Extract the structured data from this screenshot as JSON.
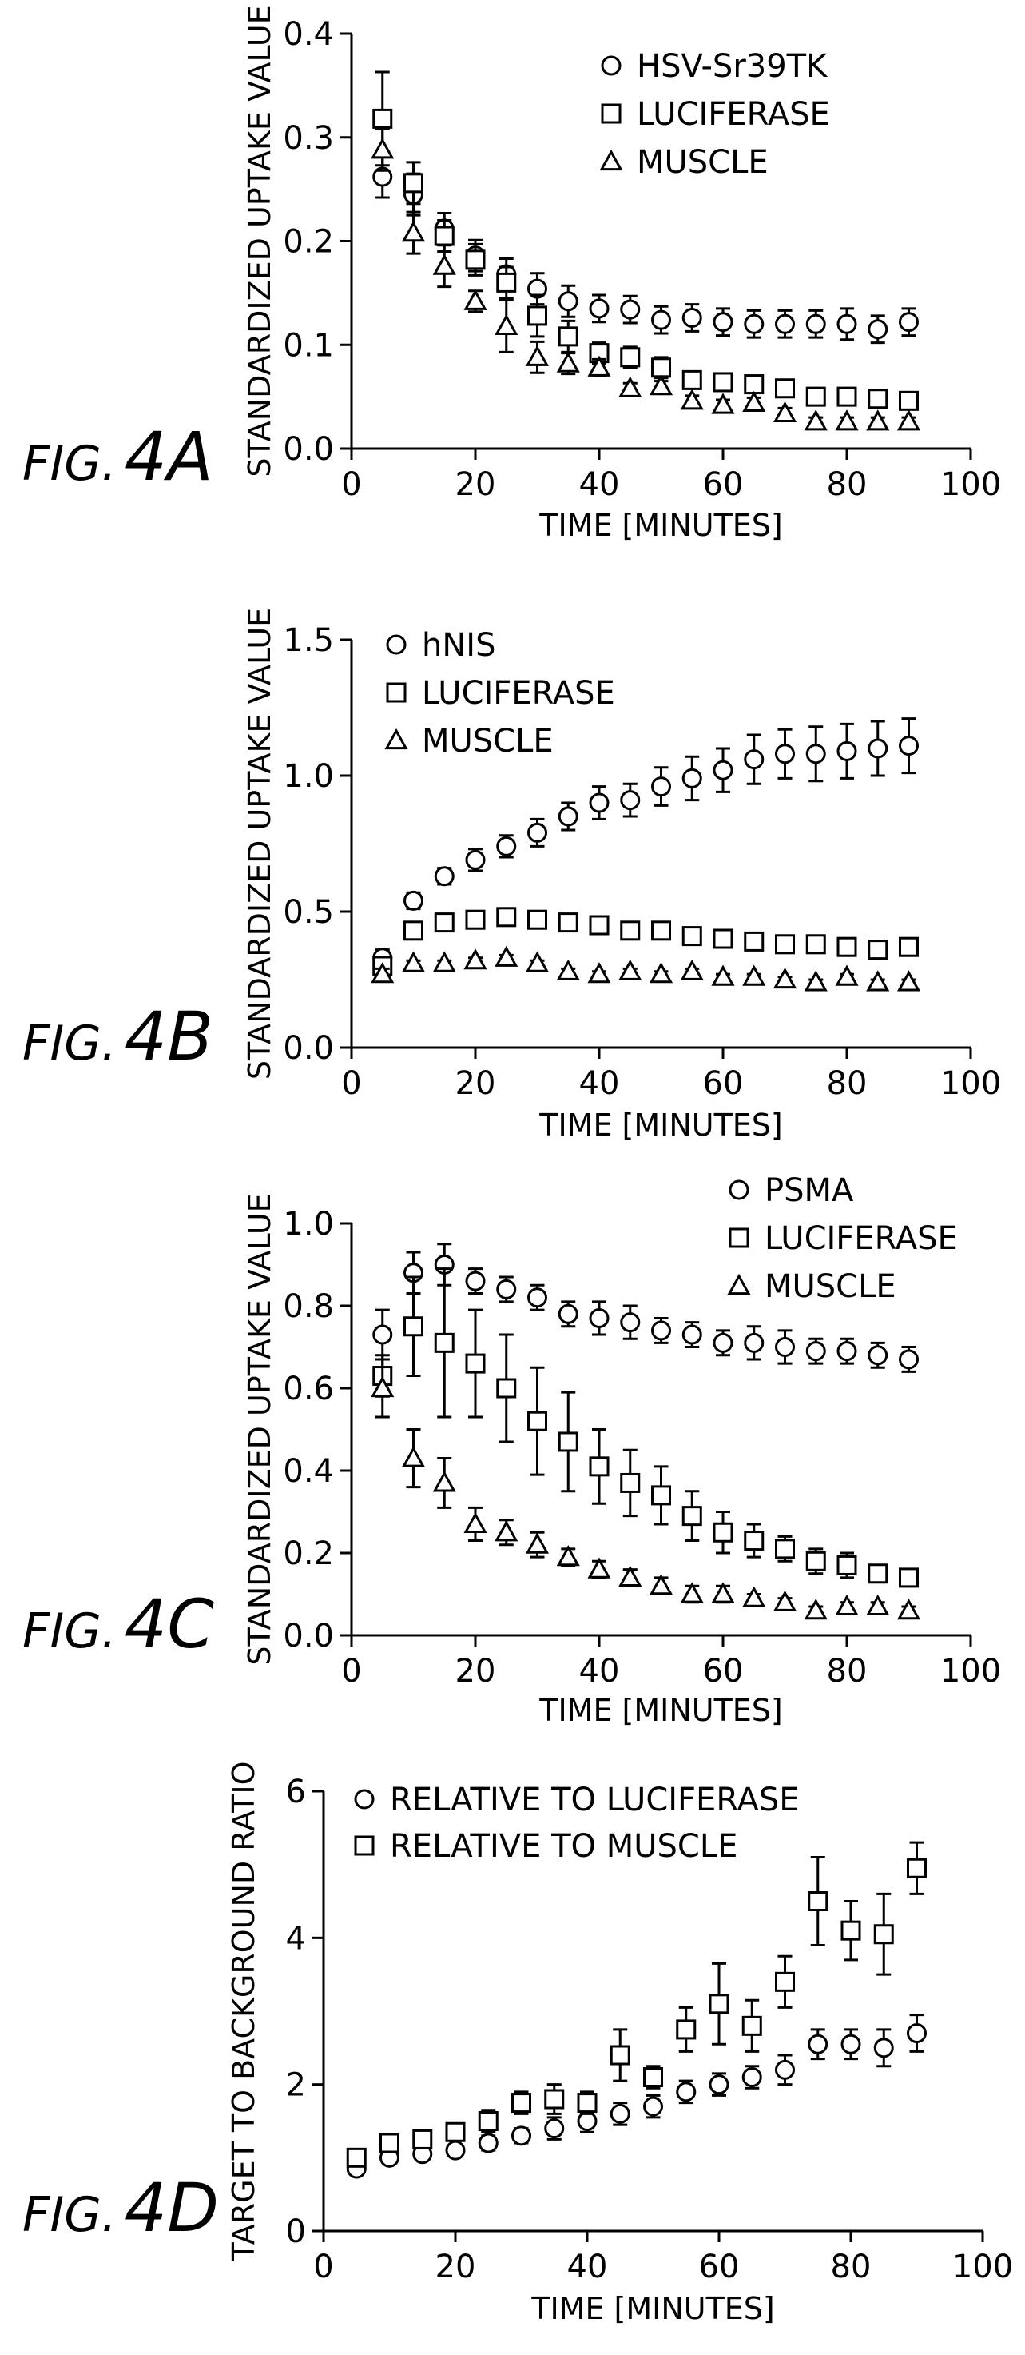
{
  "colors": {
    "ink": "#000000",
    "background": "#ffffff"
  },
  "chart_data": [
    {
      "id": "4A",
      "type": "scatter",
      "figure_label": "FIG.",
      "figure_letter": "4A",
      "xlabel": "TIME [MINUTES]",
      "ylabel": "STANDARDIZED UPTAKE VALUE",
      "xlim": [
        0,
        100
      ],
      "ylim": [
        0,
        0.4
      ],
      "xticks": [
        0,
        20,
        40,
        60,
        80,
        100
      ],
      "yticks": [
        0.0,
        0.1,
        0.2,
        0.3,
        0.4
      ],
      "ytick_labels": [
        "0.0",
        "0.1",
        "0.2",
        "0.3",
        "0.4"
      ],
      "legend_position": "top-right",
      "x": [
        5,
        10,
        15,
        20,
        25,
        30,
        35,
        40,
        45,
        50,
        55,
        60,
        65,
        70,
        75,
        80,
        85,
        90
      ],
      "series": [
        {
          "name": "HSV-Sr39TK",
          "marker": "circle",
          "values": [
            0.262,
            0.245,
            0.212,
            0.186,
            0.168,
            0.154,
            0.142,
            0.135,
            0.134,
            0.124,
            0.126,
            0.122,
            0.12,
            0.12,
            0.12,
            0.12,
            0.115,
            0.122
          ],
          "errors": [
            0.02,
            0.02,
            0.015,
            0.015,
            0.015,
            0.015,
            0.015,
            0.013,
            0.013,
            0.013,
            0.013,
            0.013,
            0.013,
            0.013,
            0.013,
            0.015,
            0.013,
            0.013
          ]
        },
        {
          "name": "LUCIFERASE",
          "marker": "square",
          "values": [
            0.318,
            0.256,
            0.205,
            0.182,
            0.16,
            0.128,
            0.108,
            0.092,
            0.088,
            0.078,
            0.066,
            0.064,
            0.062,
            0.058,
            0.05,
            0.05,
            0.048,
            0.046
          ],
          "errors": [
            0.045,
            0.02,
            0.015,
            0.015,
            0.015,
            0.02,
            0.015,
            0.01,
            0.01,
            0.01,
            0.005,
            0.005,
            0.008,
            0.005,
            0.005,
            0.005,
            0.008,
            0.005
          ]
        },
        {
          "name": "MUSCLE",
          "marker": "triangle",
          "values": [
            0.288,
            0.208,
            0.176,
            0.142,
            0.118,
            0.088,
            0.082,
            0.078,
            0.058,
            0.06,
            0.046,
            0.042,
            0.044,
            0.034,
            0.026,
            0.026,
            0.026,
            0.026
          ],
          "errors": [
            0.02,
            0.02,
            0.02,
            0.01,
            0.025,
            0.015,
            0.01,
            0.008,
            0.005,
            0.005,
            0.005,
            0.005,
            0.005,
            0.005,
            0.004,
            0.004,
            0.004,
            0.004
          ]
        }
      ]
    },
    {
      "id": "4B",
      "type": "scatter",
      "figure_label": "FIG.",
      "figure_letter": "4B",
      "xlabel": "TIME [MINUTES]",
      "ylabel": "STANDARDIZED UPTAKE VALUE",
      "xlim": [
        0,
        100
      ],
      "ylim": [
        0,
        1.5
      ],
      "xticks": [
        0,
        20,
        40,
        60,
        80,
        100
      ],
      "yticks": [
        0.0,
        0.5,
        1.0,
        1.5
      ],
      "ytick_labels": [
        "0.0",
        "0.5",
        "1.0",
        "1.5"
      ],
      "legend_position": "top-left",
      "x": [
        5,
        10,
        15,
        20,
        25,
        30,
        35,
        40,
        45,
        50,
        55,
        60,
        65,
        70,
        75,
        80,
        85,
        90
      ],
      "series": [
        {
          "name": "hNIS",
          "marker": "circle",
          "values": [
            0.33,
            0.54,
            0.63,
            0.69,
            0.74,
            0.79,
            0.85,
            0.9,
            0.91,
            0.96,
            0.99,
            1.02,
            1.06,
            1.08,
            1.08,
            1.09,
            1.1,
            1.11
          ],
          "errors": [
            0.03,
            0.03,
            0.03,
            0.04,
            0.04,
            0.05,
            0.05,
            0.06,
            0.06,
            0.07,
            0.08,
            0.08,
            0.09,
            0.09,
            0.1,
            0.1,
            0.1,
            0.1
          ]
        },
        {
          "name": "LUCIFERASE",
          "marker": "square",
          "values": [
            0.3,
            0.43,
            0.46,
            0.47,
            0.48,
            0.47,
            0.46,
            0.45,
            0.43,
            0.43,
            0.41,
            0.4,
            0.39,
            0.38,
            0.38,
            0.37,
            0.36,
            0.37
          ],
          "errors": [
            0.02,
            0.01,
            0.01,
            0.01,
            0.01,
            0.01,
            0.01,
            0.01,
            0.01,
            0.01,
            0.01,
            0.01,
            0.01,
            0.01,
            0.01,
            0.01,
            0.01,
            0.01
          ]
        },
        {
          "name": "MUSCLE",
          "marker": "triangle",
          "values": [
            0.27,
            0.31,
            0.31,
            0.32,
            0.33,
            0.31,
            0.28,
            0.27,
            0.28,
            0.27,
            0.28,
            0.26,
            0.26,
            0.25,
            0.24,
            0.26,
            0.24,
            0.24
          ],
          "errors": [
            0.02,
            0.01,
            0.01,
            0.01,
            0.01,
            0.01,
            0.01,
            0.01,
            0.01,
            0.01,
            0.01,
            0.01,
            0.01,
            0.01,
            0.01,
            0.01,
            0.01,
            0.01
          ]
        }
      ]
    },
    {
      "id": "4C",
      "type": "scatter",
      "figure_label": "FIG.",
      "figure_letter": "4C",
      "xlabel": "TIME [MINUTES]",
      "ylabel": "STANDARDIZED UPTAKE VALUE",
      "xlim": [
        0,
        100
      ],
      "ylim": [
        0,
        1.0
      ],
      "xticks": [
        0,
        20,
        40,
        60,
        80,
        100
      ],
      "yticks": [
        0.0,
        0.2,
        0.4,
        0.6,
        0.8,
        1.0
      ],
      "ytick_labels": [
        "0.0",
        "0.2",
        "0.4",
        "0.6",
        "0.8",
        "1.0"
      ],
      "legend_position": "top-right",
      "x": [
        5,
        10,
        15,
        20,
        25,
        30,
        35,
        40,
        45,
        50,
        55,
        60,
        65,
        70,
        75,
        80,
        85,
        90
      ],
      "series": [
        {
          "name": "PSMA",
          "marker": "circle",
          "values": [
            0.73,
            0.88,
            0.9,
            0.86,
            0.84,
            0.82,
            0.78,
            0.77,
            0.76,
            0.74,
            0.73,
            0.71,
            0.71,
            0.7,
            0.69,
            0.69,
            0.68,
            0.67
          ],
          "errors": [
            0.06,
            0.05,
            0.05,
            0.03,
            0.03,
            0.03,
            0.03,
            0.04,
            0.04,
            0.03,
            0.03,
            0.03,
            0.04,
            0.04,
            0.03,
            0.03,
            0.03,
            0.03
          ]
        },
        {
          "name": "LUCIFERASE",
          "marker": "square",
          "values": [
            0.63,
            0.75,
            0.71,
            0.66,
            0.6,
            0.52,
            0.47,
            0.41,
            0.37,
            0.34,
            0.29,
            0.25,
            0.23,
            0.21,
            0.18,
            0.17,
            0.15,
            0.14
          ],
          "errors": [
            0.05,
            0.12,
            0.18,
            0.13,
            0.13,
            0.13,
            0.12,
            0.09,
            0.08,
            0.07,
            0.06,
            0.05,
            0.04,
            0.03,
            0.03,
            0.03,
            0.02,
            0.02
          ]
        },
        {
          "name": "MUSCLE",
          "marker": "triangle",
          "values": [
            0.6,
            0.43,
            0.37,
            0.27,
            0.25,
            0.22,
            0.19,
            0.16,
            0.14,
            0.12,
            0.1,
            0.1,
            0.09,
            0.08,
            0.06,
            0.07,
            0.07,
            0.06
          ],
          "errors": [
            0.07,
            0.07,
            0.06,
            0.04,
            0.03,
            0.03,
            0.02,
            0.02,
            0.02,
            0.02,
            0.02,
            0.02,
            0.01,
            0.01,
            0.01,
            0.01,
            0.01,
            0.01
          ]
        }
      ]
    },
    {
      "id": "4D",
      "type": "scatter",
      "figure_label": "FIG.",
      "figure_letter": "4D",
      "xlabel": "TIME [MINUTES]",
      "ylabel": "TARGET TO BACKGROUND RATIO",
      "xlim": [
        0,
        100
      ],
      "ylim": [
        0,
        6
      ],
      "xticks": [
        0,
        20,
        40,
        60,
        80,
        100
      ],
      "yticks": [
        0,
        2,
        4,
        6
      ],
      "ytick_labels": [
        "0",
        "2",
        "4",
        "6"
      ],
      "legend_position": "top-left",
      "x": [
        5,
        10,
        15,
        20,
        25,
        30,
        35,
        40,
        45,
        50,
        55,
        60,
        65,
        70,
        75,
        80,
        85,
        90
      ],
      "series": [
        {
          "name": "RELATIVE TO LUCIFERASE",
          "marker": "circle",
          "values": [
            0.85,
            1.0,
            1.05,
            1.1,
            1.2,
            1.3,
            1.4,
            1.5,
            1.6,
            1.7,
            1.9,
            2.0,
            2.1,
            2.2,
            2.55,
            2.55,
            2.5,
            2.7
          ],
          "errors": [
            0.05,
            0.05,
            0.05,
            0.05,
            0.1,
            0.1,
            0.15,
            0.15,
            0.15,
            0.15,
            0.15,
            0.15,
            0.15,
            0.2,
            0.2,
            0.2,
            0.25,
            0.25
          ]
        },
        {
          "name": "RELATIVE TO MUSCLE",
          "marker": "square",
          "values": [
            1.0,
            1.2,
            1.25,
            1.35,
            1.5,
            1.75,
            1.8,
            1.75,
            2.4,
            2.1,
            2.75,
            3.1,
            2.8,
            3.4,
            4.5,
            4.1,
            4.05,
            4.95
          ],
          "errors": [
            0.05,
            0.1,
            0.1,
            0.1,
            0.15,
            0.15,
            0.2,
            0.15,
            0.35,
            0.15,
            0.3,
            0.55,
            0.35,
            0.35,
            0.6,
            0.4,
            0.55,
            0.35
          ]
        }
      ]
    }
  ]
}
